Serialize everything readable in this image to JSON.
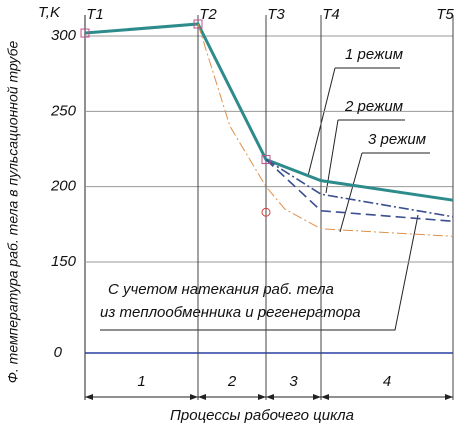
{
  "chart_data": {
    "type": "line",
    "y_label": "Ф. температура раб. тела в пульсационной трубе",
    "y_unit_label": "T,K",
    "x_label": "Процессы рабочего цикла",
    "xlim": [
      0,
      368
    ],
    "ylim": [
      0,
      310
    ],
    "ybreak": [
      0,
      140
    ],
    "yticks": [
      0,
      150,
      200,
      250,
      300
    ],
    "grid": true,
    "stage_markers": [
      "T1",
      "T2",
      "T3",
      "T4",
      "T5"
    ],
    "stage_x": [
      0,
      113,
      181,
      236,
      368
    ],
    "intervals": [
      "1",
      "2",
      "3",
      "4"
    ],
    "series": [
      {
        "name": "1 режим",
        "color": "#2e8b8b",
        "style": "solid",
        "width": 3,
        "x": [
          0,
          113,
          181,
          236,
          368
        ],
        "values": [
          302,
          308,
          218,
          204,
          191
        ]
      },
      {
        "name": "2 режим",
        "color": "#3a4f8f",
        "style": "dashdot",
        "width": 1.6,
        "x": [
          181,
          236,
          368
        ],
        "values": [
          218,
          195,
          180
        ]
      },
      {
        "name": "3 режим",
        "color": "#3a4f8f",
        "style": "dash",
        "width": 1.6,
        "x": [
          181,
          236,
          368
        ],
        "values": [
          218,
          184,
          177
        ]
      },
      {
        "name": "С учетом натекания раб. тела из теплообменника и регенератора",
        "color": "#e0904a",
        "style": "dashdot",
        "width": 1,
        "x": [
          113,
          145,
          181,
          200,
          236,
          368
        ],
        "values": [
          308,
          240,
          200,
          185,
          172,
          167
        ]
      }
    ],
    "square_markers": {
      "color": "#c0508a",
      "x": [
        0,
        113,
        181
      ],
      "values": [
        302,
        308,
        218
      ]
    },
    "circle_markers": {
      "color": "#d04040",
      "x": [
        181
      ],
      "values": [
        183
      ]
    },
    "annotation_lines": [
      "С учетом натекания раб. тела",
      "из теплообменника и регенератора"
    ]
  }
}
